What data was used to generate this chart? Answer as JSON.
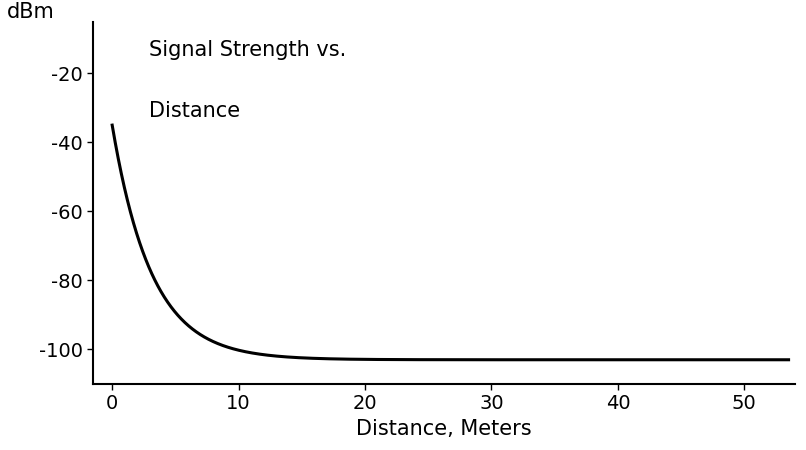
{
  "title_line1": "Signal Strength vs.",
  "title_line2": "Distance",
  "ylabel": "dBm",
  "xlabel": "Distance, Meters",
  "xlim": [
    -1.5,
    54
  ],
  "ylim": [
    -110,
    -5
  ],
  "yticks": [
    -20,
    -40,
    -60,
    -80,
    -100
  ],
  "xticks": [
    0,
    10,
    20,
    30,
    40,
    50
  ],
  "line_color": "#000000",
  "line_width": 2.2,
  "background_color": "#ffffff",
  "signal_at_zero": -35,
  "asymptote": -103,
  "decay_constant": 0.32,
  "x_start": 0.0,
  "x_end": 53.5,
  "font_family": "DejaVu Sans",
  "tick_fontsize": 14,
  "label_fontsize": 15,
  "title_fontsize": 15
}
